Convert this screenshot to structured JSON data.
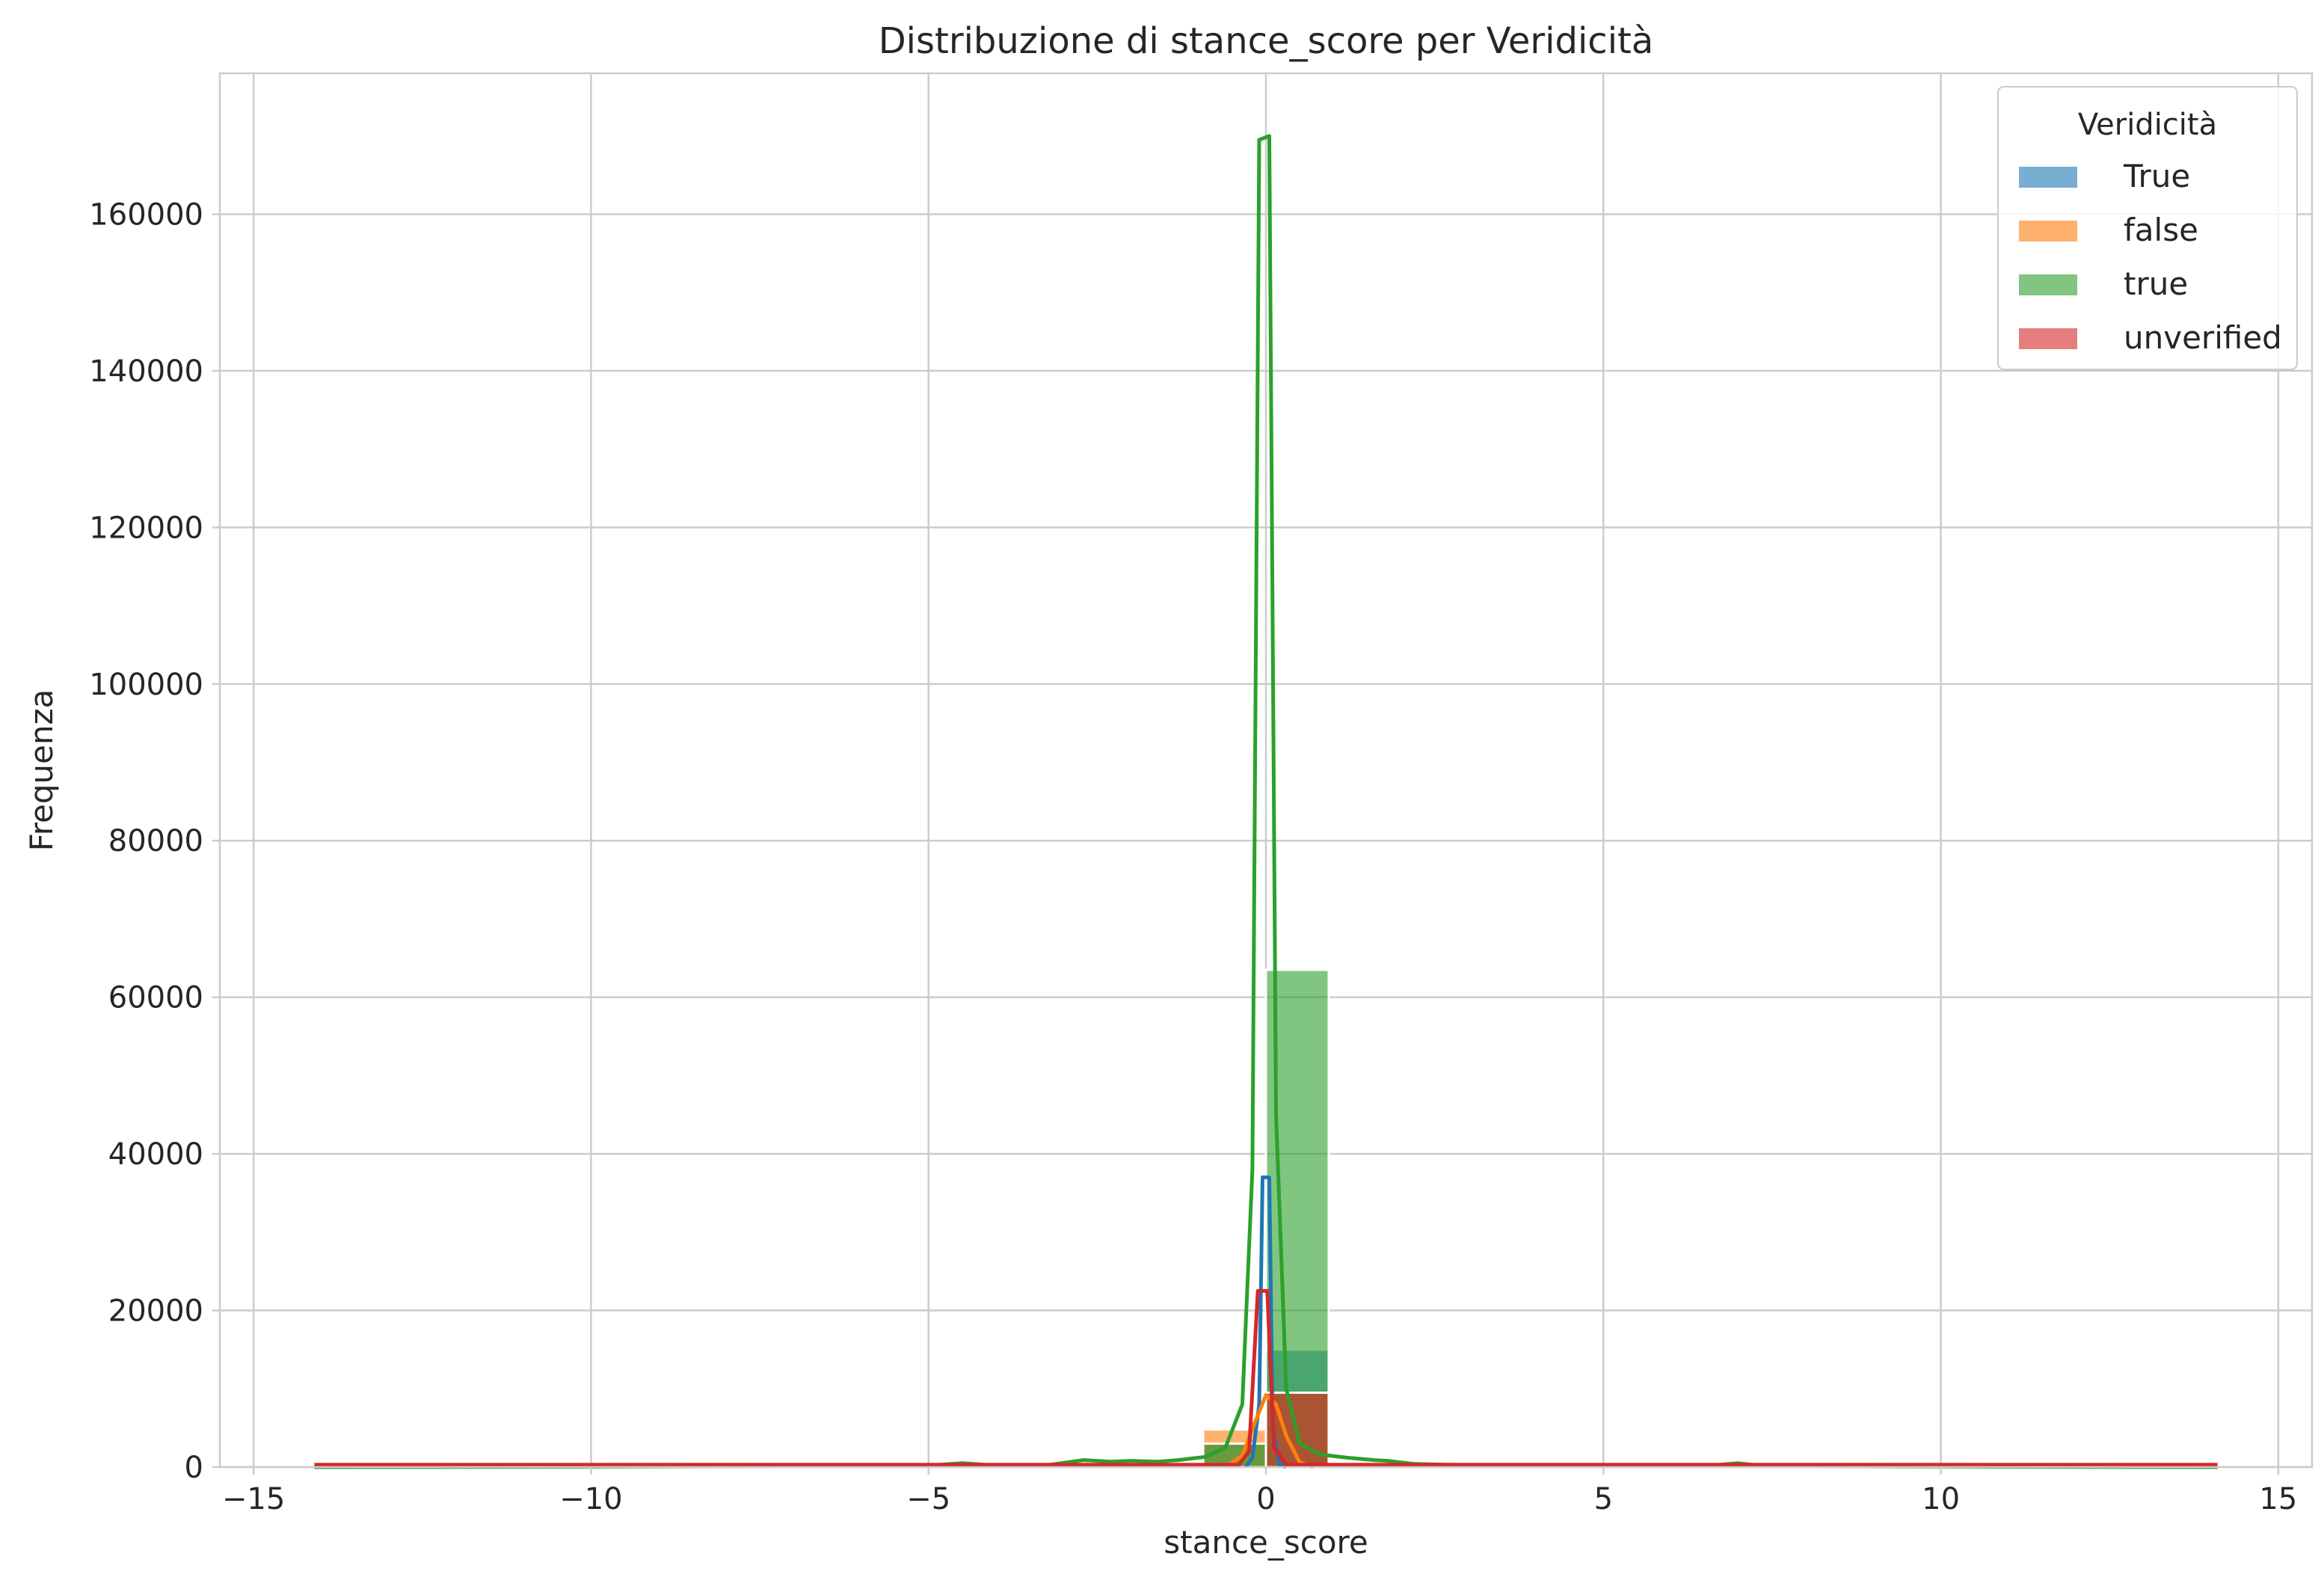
{
  "chart_data": {
    "type": "bar",
    "title": "Distribuzione di stance_score per Veridicità",
    "xlabel": "stance_score",
    "ylabel": "Frequenza",
    "xlim": [
      -15.5,
      15.5
    ],
    "ylim": [
      0,
      178000
    ],
    "xticks": [
      -15,
      -10,
      -5,
      0,
      5,
      10,
      15
    ],
    "xtick_labels": [
      "−15",
      "−10",
      "−5",
      "0",
      "5",
      "10",
      "15"
    ],
    "yticks": [
      0,
      20000,
      40000,
      60000,
      80000,
      100000,
      120000,
      140000,
      160000
    ],
    "ytick_labels": [
      "0",
      "20000",
      "40000",
      "60000",
      "80000",
      "100000",
      "120000",
      "140000",
      "160000"
    ],
    "grid": true,
    "legend": {
      "title": "Veridicità",
      "placement": "top-right"
    },
    "bin_width": 0.93,
    "series": [
      {
        "name": "True",
        "color": "#1f77b4",
        "bins": [
          {
            "x0": -0.93,
            "count": 3000
          },
          {
            "x0": 0,
            "count": 15000
          }
        ],
        "kde": [
          [
            -0.3,
            0
          ],
          [
            -0.2,
            1200
          ],
          [
            -0.1,
            8000
          ],
          [
            -0.05,
            37000
          ],
          [
            0.05,
            37000
          ],
          [
            0.1,
            5000
          ],
          [
            0.2,
            300
          ],
          [
            0.3,
            0
          ]
        ]
      },
      {
        "name": "false",
        "color": "#ff7f0e",
        "bins": [
          {
            "x0": -0.93,
            "count": 4800
          },
          {
            "x0": 0,
            "count": 9500
          }
        ],
        "kde": [
          [
            -0.6,
            0
          ],
          [
            -0.35,
            1500
          ],
          [
            -0.15,
            6000
          ],
          [
            0,
            9200
          ],
          [
            0.15,
            8000
          ],
          [
            0.3,
            4000
          ],
          [
            0.5,
            600
          ],
          [
            0.7,
            0
          ]
        ]
      },
      {
        "name": "true",
        "color": "#2ca02c",
        "bins": [
          {
            "x0": -0.93,
            "count": 3000
          },
          {
            "x0": 0,
            "count": 63500
          }
        ],
        "kde": [
          [
            -14.1,
            0
          ],
          [
            -10,
            50
          ],
          [
            -7,
            150
          ],
          [
            -5,
            200
          ],
          [
            -4.5,
            500
          ],
          [
            -4,
            200
          ],
          [
            -3.2,
            300
          ],
          [
            -2.7,
            900
          ],
          [
            -2.3,
            700
          ],
          [
            -2,
            800
          ],
          [
            -1.6,
            700
          ],
          [
            -1.3,
            900
          ],
          [
            -0.9,
            1300
          ],
          [
            -0.6,
            2500
          ],
          [
            -0.35,
            8000
          ],
          [
            -0.2,
            38000
          ],
          [
            -0.1,
            169500
          ],
          [
            0.05,
            170000
          ],
          [
            0.15,
            45000
          ],
          [
            0.3,
            10000
          ],
          [
            0.5,
            3000
          ],
          [
            0.8,
            1600
          ],
          [
            1.2,
            1200
          ],
          [
            1.6,
            900
          ],
          [
            1.8,
            800
          ],
          [
            2.2,
            400
          ],
          [
            2.7,
            300
          ],
          [
            3.5,
            250
          ],
          [
            4.5,
            200
          ],
          [
            5.5,
            150
          ],
          [
            6.5,
            150
          ],
          [
            7,
            500
          ],
          [
            7.3,
            200
          ],
          [
            9,
            100
          ],
          [
            11,
            50
          ],
          [
            14.1,
            0
          ]
        ]
      },
      {
        "name": "unverified",
        "color": "#d62728",
        "bins": [
          {
            "x0": 0,
            "count": 9500
          }
        ],
        "kde": [
          [
            -14.1,
            300
          ],
          [
            -0.4,
            300
          ],
          [
            -0.25,
            2000
          ],
          [
            -0.12,
            22500
          ],
          [
            0.02,
            22500
          ],
          [
            0.12,
            2500
          ],
          [
            0.3,
            300
          ],
          [
            14.1,
            300
          ]
        ]
      }
    ]
  }
}
